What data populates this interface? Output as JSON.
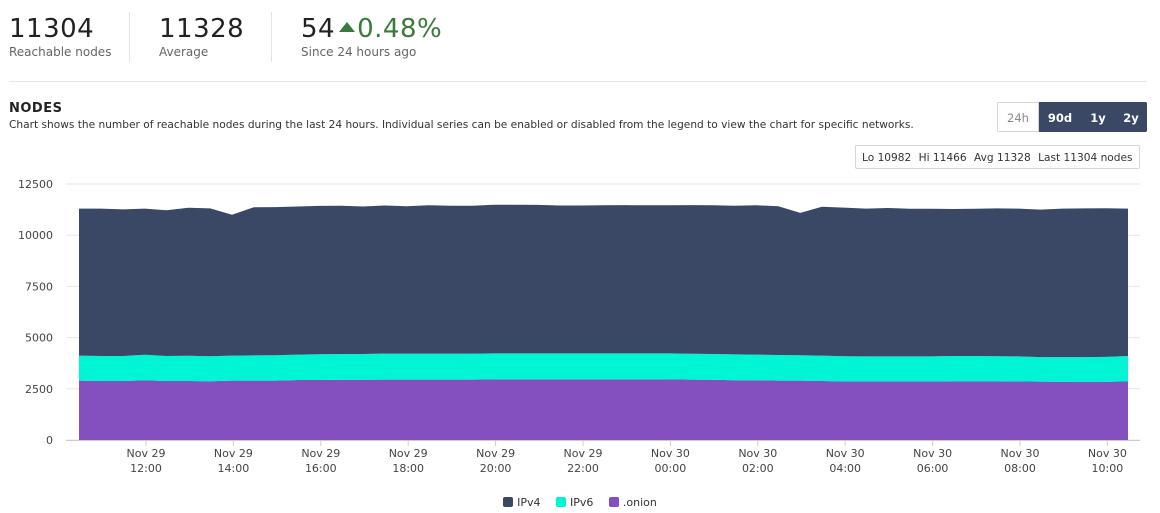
{
  "stats": [
    {
      "value": "11304",
      "label": "Reachable nodes"
    },
    {
      "value": "11328",
      "label": "Average"
    },
    {
      "value": "54",
      "change": "0.48%",
      "label": "Since 24 hours ago"
    }
  ],
  "section": {
    "title": "NODES",
    "description": "Chart shows the number of reachable nodes during the last 24 hours. Individual series can be enabled or disabled from the legend to view the chart for specific networks."
  },
  "range_buttons": [
    {
      "label": "24h",
      "active": true
    },
    {
      "label": "90d",
      "active": false
    },
    {
      "label": "1y",
      "active": false
    },
    {
      "label": "2y",
      "active": false
    }
  ],
  "summary": {
    "lo": "Lo 10982",
    "hi": "Hi 11466",
    "avg": "Avg 11328",
    "last": "Last 11304 nodes"
  },
  "colors": {
    "ipv4": "#3a4865",
    "ipv6": "#00f5d4",
    "onion": "#8450bf",
    "positive": "#3a7a3a"
  },
  "chart_data": {
    "type": "area",
    "stacked": true,
    "y_ticks": [
      0,
      2500,
      5000,
      7500,
      10000,
      12500
    ],
    "ylim": [
      0,
      12500
    ],
    "x_ticks": [
      {
        "date": "Nov 29",
        "time": "12:00"
      },
      {
        "date": "Nov 29",
        "time": "14:00"
      },
      {
        "date": "Nov 29",
        "time": "16:00"
      },
      {
        "date": "Nov 29",
        "time": "18:00"
      },
      {
        "date": "Nov 29",
        "time": "20:00"
      },
      {
        "date": "Nov 29",
        "time": "22:00"
      },
      {
        "date": "Nov 30",
        "time": "00:00"
      },
      {
        "date": "Nov 30",
        "time": "02:00"
      },
      {
        "date": "Nov 30",
        "time": "04:00"
      },
      {
        "date": "Nov 30",
        "time": "06:00"
      },
      {
        "date": "Nov 30",
        "time": "08:00"
      },
      {
        "date": "Nov 30",
        "time": "10:00"
      }
    ],
    "x": [
      "Nov 29 10:30",
      "Nov 29 11:00",
      "Nov 29 11:30",
      "Nov 29 12:00",
      "Nov 29 12:30",
      "Nov 29 13:00",
      "Nov 29 13:30",
      "Nov 29 14:00",
      "Nov 29 14:30",
      "Nov 29 15:00",
      "Nov 29 15:30",
      "Nov 29 16:00",
      "Nov 29 16:30",
      "Nov 29 17:00",
      "Nov 29 17:30",
      "Nov 29 18:00",
      "Nov 29 18:30",
      "Nov 29 19:00",
      "Nov 29 19:30",
      "Nov 29 20:00",
      "Nov 29 20:30",
      "Nov 29 21:00",
      "Nov 29 21:30",
      "Nov 29 22:00",
      "Nov 29 22:30",
      "Nov 29 23:00",
      "Nov 29 23:30",
      "Nov 30 00:00",
      "Nov 30 00:30",
      "Nov 30 01:00",
      "Nov 30 01:30",
      "Nov 30 02:00",
      "Nov 30 02:30",
      "Nov 30 03:00",
      "Nov 30 03:30",
      "Nov 30 04:00",
      "Nov 30 04:30",
      "Nov 30 05:00",
      "Nov 30 05:30",
      "Nov 30 06:00",
      "Nov 30 06:30",
      "Nov 30 07:00",
      "Nov 30 07:30",
      "Nov 30 08:00",
      "Nov 30 08:30",
      "Nov 30 09:00",
      "Nov 30 09:30",
      "Nov 30 10:00",
      "Nov 30 10:30"
    ],
    "series": [
      {
        "name": ".onion",
        "values": [
          2900,
          2880,
          2880,
          2920,
          2880,
          2880,
          2870,
          2900,
          2900,
          2900,
          2930,
          2930,
          2940,
          2940,
          2950,
          2950,
          2950,
          2950,
          2950,
          2960,
          2960,
          2960,
          2960,
          2960,
          2960,
          2960,
          2960,
          2960,
          2950,
          2940,
          2920,
          2920,
          2900,
          2900,
          2880,
          2860,
          2860,
          2860,
          2860,
          2860,
          2870,
          2870,
          2870,
          2860,
          2850,
          2840,
          2840,
          2840,
          2860
        ]
      },
      {
        "name": "IPv6",
        "values": [
          1220,
          1220,
          1220,
          1240,
          1220,
          1230,
          1220,
          1220,
          1230,
          1240,
          1240,
          1260,
          1260,
          1260,
          1270,
          1270,
          1270,
          1270,
          1270,
          1270,
          1270,
          1270,
          1270,
          1270,
          1270,
          1270,
          1270,
          1270,
          1260,
          1260,
          1260,
          1250,
          1250,
          1240,
          1240,
          1230,
          1220,
          1220,
          1220,
          1220,
          1230,
          1230,
          1220,
          1220,
          1200,
          1210,
          1210,
          1220,
          1240
        ]
      },
      {
        "name": "IPv4",
        "values": [
          7180,
          7200,
          7160,
          7140,
          7120,
          7230,
          7220,
          6880,
          7230,
          7230,
          7230,
          7240,
          7240,
          7200,
          7230,
          7190,
          7240,
          7220,
          7220,
          7260,
          7260,
          7250,
          7220,
          7220,
          7230,
          7240,
          7230,
          7230,
          7260,
          7260,
          7260,
          7290,
          7260,
          6950,
          7270,
          7260,
          7220,
          7250,
          7210,
          7210,
          7180,
          7190,
          7220,
          7220,
          7200,
          7250,
          7260,
          7260,
          7200
        ]
      }
    ]
  }
}
